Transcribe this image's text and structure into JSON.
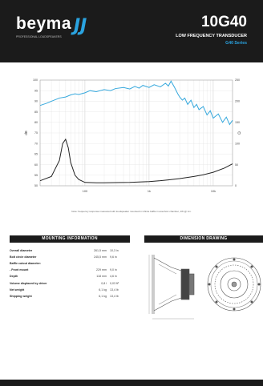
{
  "header": {
    "brand": "beyma",
    "brand_mark": "JJ",
    "tagline": "PROFESSIONAL LOUDSPEAKERS",
    "model": "10G40",
    "subtitle": "LOW FREQUENCY TRANSDUCER",
    "series": "G40 Series"
  },
  "chart_data": {
    "type": "line",
    "xscale": "log",
    "xlim": [
      20,
      20000
    ],
    "x_ticks": [
      "100",
      "1k",
      "10k"
    ],
    "y_left_ticks": [
      "100",
      "95",
      "90",
      "85",
      "80",
      "75",
      "70",
      "65",
      "60",
      "55",
      "50"
    ],
    "y_right_ticks": [
      "250",
      "200",
      "150",
      "100",
      "50",
      "0"
    ],
    "ylabel_left": "dB",
    "ylabel_right": "Ω",
    "series": [
      {
        "color": "#35a8dd",
        "x": [
          20,
          25,
          30,
          40,
          50,
          60,
          70,
          80,
          100,
          120,
          150,
          200,
          250,
          300,
          400,
          500,
          600,
          700,
          800,
          1000,
          1200,
          1500,
          1800,
          2000,
          2200,
          2500,
          2800,
          3000,
          3300,
          3600,
          4000,
          4500,
          5000,
          5500,
          6000,
          7000,
          8000,
          9000,
          10000,
          12000,
          14000,
          16000,
          18000,
          20000
        ],
        "y": [
          88,
          89,
          90,
          91.5,
          92,
          93,
          93.5,
          93.2,
          94,
          95,
          94.5,
          95.5,
          95,
          96,
          96.5,
          95.8,
          97,
          96.2,
          97.5,
          96.5,
          97.8,
          96.8,
          98.5,
          97.2,
          99.5,
          96.5,
          93.5,
          92,
          90.5,
          91.5,
          88.5,
          90.5,
          87,
          88.5,
          86,
          87.5,
          83.5,
          85.5,
          82,
          84,
          80,
          82.5,
          79,
          81
        ]
      },
      {
        "color": "#222222",
        "x": [
          20,
          30,
          40,
          45,
          50,
          55,
          60,
          70,
          80,
          100,
          150,
          200,
          300,
          500,
          700,
          1000,
          1500,
          2000,
          3000,
          5000,
          7000,
          10000,
          15000,
          20000
        ],
        "y_right": [
          12,
          22,
          60,
          100,
          110,
          90,
          55,
          25,
          15,
          8,
          7,
          7,
          7.5,
          8,
          9,
          10,
          12,
          14,
          17,
          22,
          26,
          32,
          42,
          52
        ]
      }
    ]
  },
  "chart_caption": "Note: frequency response measured with loudspeaker mounted in infinite baffle in anechoic chamber, 1W @ 1m.",
  "mounting": {
    "title": "MOUNTING INFORMATION",
    "rows": [
      {
        "label": "Overall diameter",
        "v1": "261,5 mm",
        "v2": "10,3 in"
      },
      {
        "label": "Bolt circle diameter",
        "v1": "245,5 mm",
        "v2": "9,6 in"
      },
      {
        "label": "Baffle cutout diameter:",
        "v1": "",
        "v2": ""
      },
      {
        "label": "- Front mount",
        "v1": "229 mm",
        "v2": "9,0 in"
      },
      {
        "label": "Depth",
        "v1": "118 mm",
        "v2": "4,6 in"
      },
      {
        "label": "Volume displaced by driver",
        "v1": "0,8 l",
        "v2": "0,03 ft³"
      },
      {
        "label": "Net weight",
        "v1": "6,1 kg",
        "v2": "13,4 lb"
      },
      {
        "label": "Shipping weight",
        "v1": "6,1 kg",
        "v2": "13,4 lb"
      }
    ]
  },
  "dimension": {
    "title": "DIMENSION DRAWING"
  }
}
